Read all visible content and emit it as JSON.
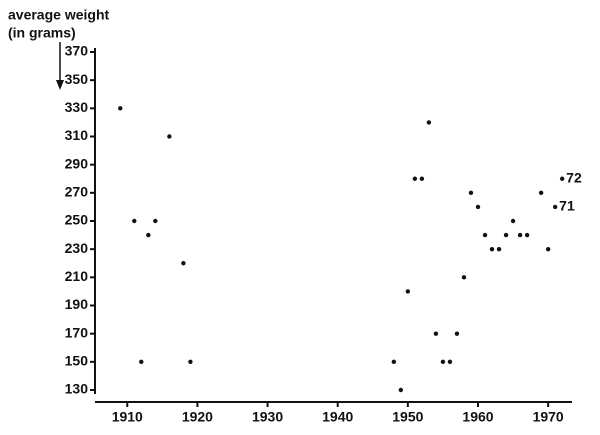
{
  "chart_data": {
    "type": "scatter",
    "ylabel": [
      "average weight",
      "(in grams)"
    ],
    "color": "#111111",
    "x": [
      1909,
      1911,
      1912,
      1913,
      1914,
      1916,
      1918,
      1919,
      1948,
      1949,
      1950,
      1951,
      1952,
      1953,
      1954,
      1955,
      1956,
      1957,
      1958,
      1959,
      1960,
      1961,
      1962,
      1963,
      1964,
      1965,
      1966,
      1967,
      1969,
      1970,
      1971,
      1972
    ],
    "values": [
      330,
      250,
      150,
      240,
      250,
      310,
      220,
      150,
      150,
      130,
      200,
      280,
      280,
      320,
      170,
      150,
      150,
      170,
      210,
      270,
      260,
      240,
      230,
      230,
      240,
      250,
      240,
      240,
      270,
      230,
      260,
      280
    ],
    "annotations": [
      {
        "text": "71",
        "x": 1971,
        "y": 260
      },
      {
        "text": "72",
        "x": 1972,
        "y": 280
      }
    ],
    "xlim": [
      1905.4,
      1973.4
    ],
    "ylim": [
      130,
      370
    ],
    "xticks": [
      1910,
      1920,
      1930,
      1940,
      1950,
      1960,
      1970
    ],
    "yticks": [
      130,
      150,
      170,
      190,
      210,
      230,
      250,
      270,
      290,
      310,
      330,
      350,
      370
    ]
  }
}
